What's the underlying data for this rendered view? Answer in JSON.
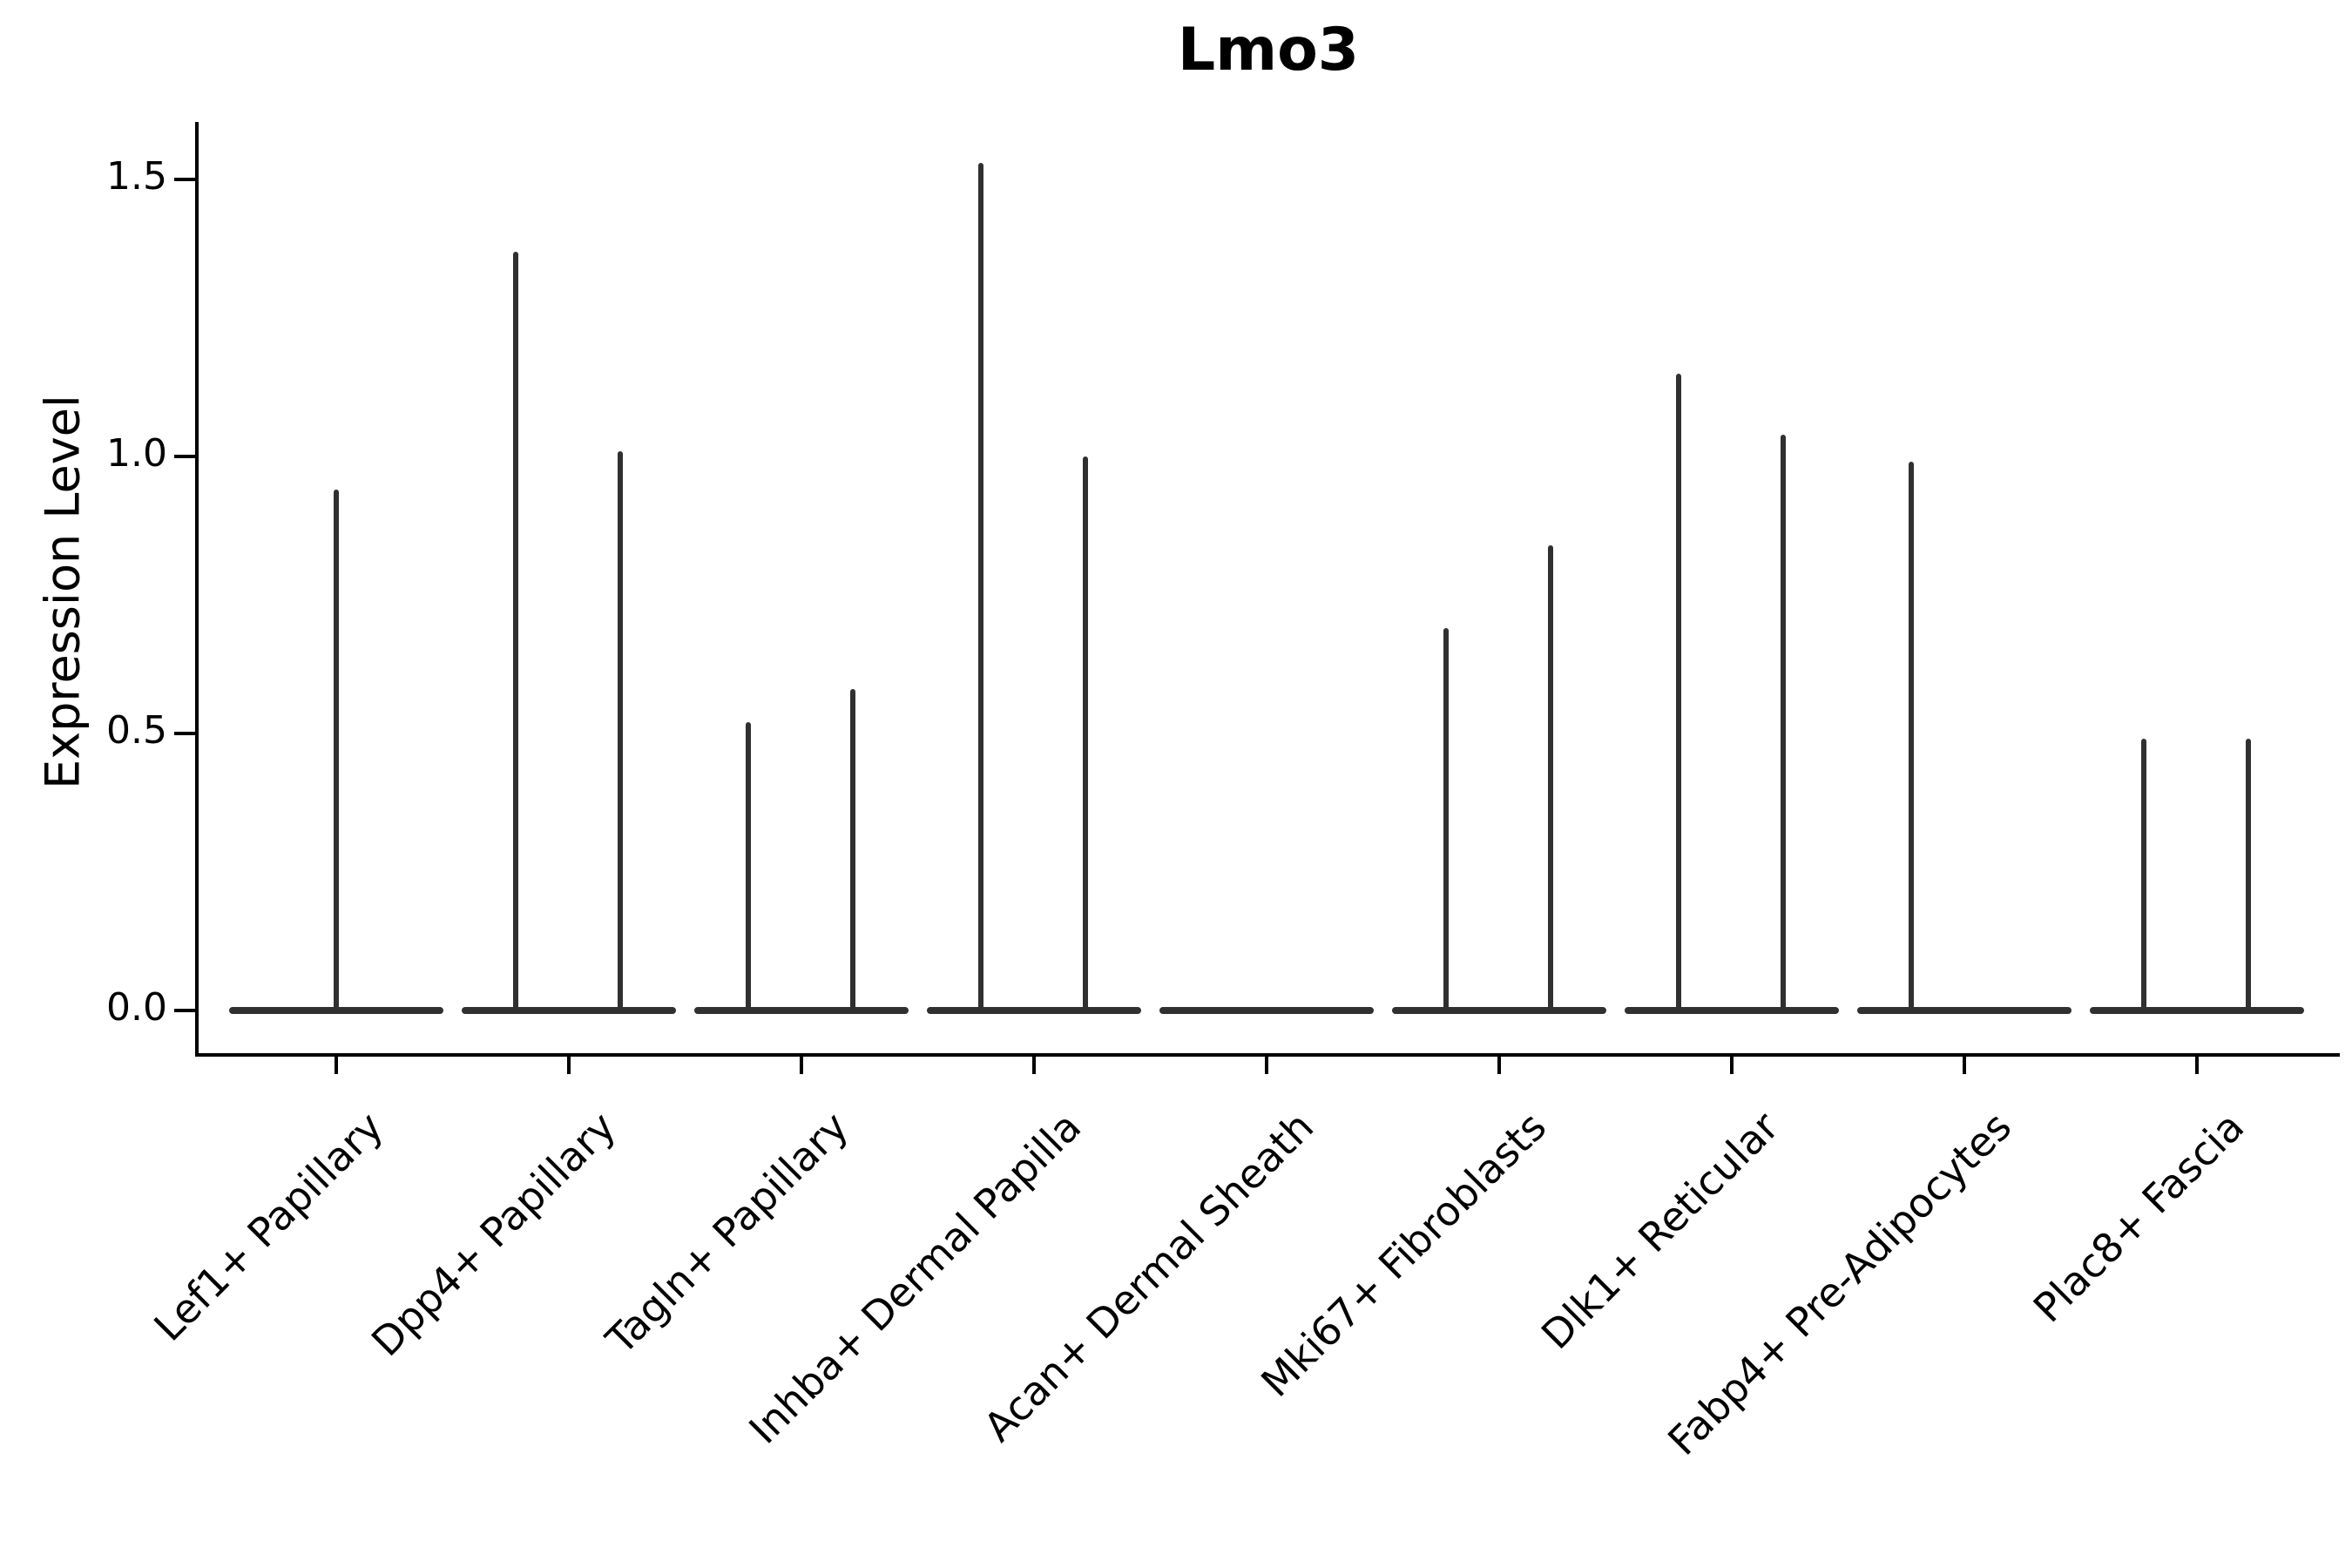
{
  "chart_data": {
    "type": "violin",
    "title": "Lmo3",
    "ylabel": "Expression Level",
    "xlabel": "",
    "ytick_labels": [
      "0.0",
      "0.5",
      "1.0",
      "1.5"
    ],
    "ytick_values": [
      0.0,
      0.5,
      1.0,
      1.5
    ],
    "ylim": [
      -0.07,
      1.6
    ],
    "grid": false,
    "legend": "none",
    "line_color": "#303030",
    "axis_color": "#000000",
    "baseline_value": 0.0,
    "categories": [
      "Lef1+ Papillary",
      "Dpp4+ Papillary",
      "Tagln+ Papillary",
      "Inhba+ Dermal Papilla",
      "Acan+ Dermal Sheath",
      "Mki67+ Fibroblasts",
      "Dlk1+ Reticular",
      "Fabp4+ Pre-Adipocytes",
      "Plac8+ Fascia"
    ],
    "violins": [
      {
        "category": "Lef1+ Papillary",
        "spikes": [
          {
            "slot": "center",
            "max": 0.94
          }
        ]
      },
      {
        "category": "Dpp4+ Papillary",
        "spikes": [
          {
            "slot": "left",
            "max": 1.37
          },
          {
            "slot": "right",
            "max": 1.01
          }
        ]
      },
      {
        "category": "Tagln+ Papillary",
        "spikes": [
          {
            "slot": "left",
            "max": 0.52
          },
          {
            "slot": "right",
            "max": 0.58
          }
        ]
      },
      {
        "category": "Inhba+ Dermal Papilla",
        "spikes": [
          {
            "slot": "left",
            "max": 1.53
          },
          {
            "slot": "right",
            "max": 1.0
          }
        ]
      },
      {
        "category": "Acan+ Dermal Sheath",
        "spikes": []
      },
      {
        "category": "Mki67+ Fibroblasts",
        "spikes": [
          {
            "slot": "left",
            "max": 0.69
          },
          {
            "slot": "right",
            "max": 0.84
          }
        ]
      },
      {
        "category": "Dlk1+ Reticular",
        "spikes": [
          {
            "slot": "left",
            "max": 1.15
          },
          {
            "slot": "right",
            "max": 1.04
          }
        ]
      },
      {
        "category": "Fabp4+ Pre-Adipocytes",
        "spikes": [
          {
            "slot": "left",
            "max": 0.99
          }
        ]
      },
      {
        "category": "Plac8+ Fascia",
        "spikes": [
          {
            "slot": "left",
            "max": 0.49
          },
          {
            "slot": "right",
            "max": 0.49
          }
        ]
      }
    ]
  }
}
